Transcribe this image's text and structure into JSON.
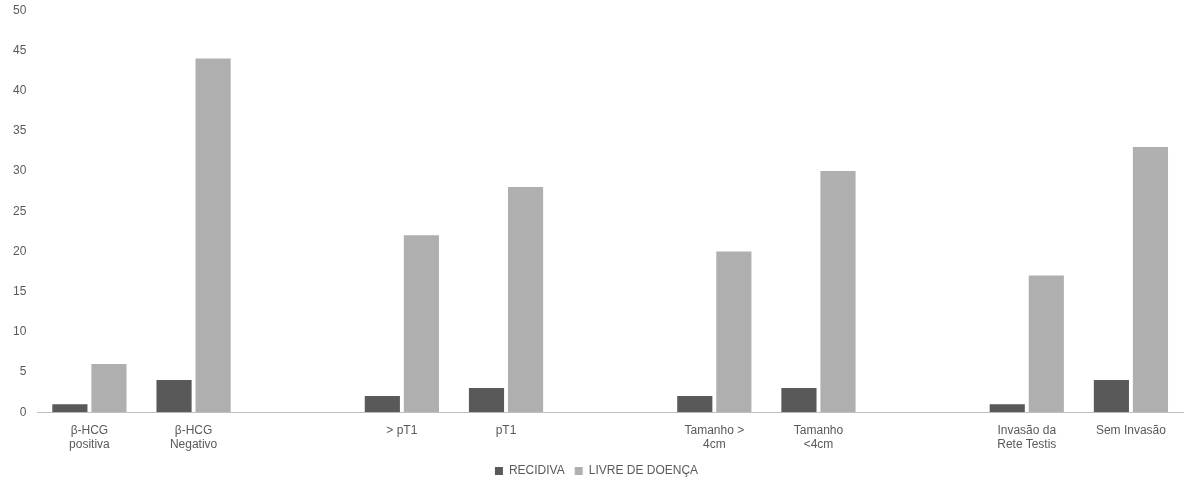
{
  "chart_data": {
    "type": "bar",
    "categories": [
      "β-HCG positiva",
      "β-HCG Negativo",
      null,
      "> pT1",
      "pT1",
      null,
      "Tamanho > 4cm",
      "Tamanho <4cm",
      null,
      "Invasão da Rete Testis",
      "Sem Invasão"
    ],
    "series": [
      {
        "name": "RECIDIVA",
        "color": "#595959",
        "values": [
          1,
          4,
          null,
          2,
          3,
          null,
          2,
          3,
          null,
          1,
          4
        ]
      },
      {
        "name": "LIVRE DE DOENÇA",
        "color": "#afafaf",
        "values": [
          6,
          44,
          null,
          22,
          28,
          null,
          20,
          30,
          null,
          17,
          33
        ]
      }
    ],
    "ylim": [
      0,
      50
    ],
    "yticks": [
      0,
      5,
      10,
      15,
      20,
      25,
      30,
      35,
      40,
      45,
      50
    ],
    "grid": false,
    "legend": "bottom"
  }
}
